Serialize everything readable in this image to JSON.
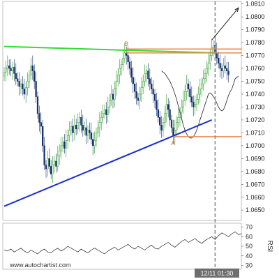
{
  "chart_data": [
    {
      "type": "candlestick",
      "name": "price",
      "source_text": "www.autochartist.com",
      "current_time_label": "12/11 01:30",
      "ylim": [
        1.0642,
        1.0812
      ],
      "y_ticks": [
        "1.0810",
        "1.0800",
        "1.0790",
        "1.0780",
        "1.0770",
        "1.0760",
        "1.0750",
        "1.0740",
        "1.0730",
        "1.0720",
        "1.0710",
        "1.0700",
        "1.0690",
        "1.0680",
        "1.0670",
        "1.0660",
        "1.0650"
      ],
      "point_labels": [
        {
          "label": "B",
          "index": 73,
          "price": 1.0773
        },
        {
          "label": "A",
          "index": 101,
          "price": 1.0707
        }
      ],
      "overlays": {
        "resistance_line": {
          "color": "#33dd33",
          "from": {
            "index": 0,
            "price": 1.0777
          },
          "to": {
            "index": 126,
            "price": 1.0772
          }
        },
        "support_line": {
          "color": "#1a2fd6",
          "from": {
            "index": 0,
            "price": 1.0653
          },
          "to": {
            "index": 124,
            "price": 1.072
          }
        },
        "orange_levels": [
          {
            "price": 1.0775,
            "from_index": 73,
            "to_index": 142
          },
          {
            "price": 1.0772,
            "from_index": 73,
            "to_index": 142
          },
          {
            "price": 1.0707,
            "from_index": 101,
            "to_index": 142
          }
        ],
        "forecast_arrow": {
          "from": {
            "index": 124,
            "price": 1.0782
          },
          "to": {
            "index": 140,
            "price": 1.0807
          }
        },
        "current_time_index": 126
      },
      "ohlc_close": [
        1.0757,
        1.076,
        1.0762,
        1.076,
        1.0758,
        1.0761,
        1.0756,
        1.0752,
        1.075,
        1.0746,
        1.0748,
        1.0744,
        1.074,
        1.0745,
        1.075,
        1.0755,
        1.0762,
        1.0758,
        1.075,
        1.0738,
        1.0725,
        1.0718,
        1.0715,
        1.07,
        1.0685,
        1.0682,
        1.069,
        1.0684,
        1.0678,
        1.0685,
        1.0688,
        1.0684,
        1.0692,
        1.0696,
        1.07,
        1.0703,
        1.0698,
        1.0704,
        1.0708,
        1.0712,
        1.0715,
        1.071,
        1.0716,
        1.0713,
        1.0718,
        1.0722,
        1.0716,
        1.0712,
        1.0714,
        1.0708,
        1.0712,
        1.071,
        1.0705,
        1.07,
        1.0704,
        1.071,
        1.0714,
        1.0718,
        1.0722,
        1.0725,
        1.0728,
        1.0724,
        1.073,
        1.0735,
        1.074,
        1.0736,
        1.0744,
        1.075,
        1.0755,
        1.076,
        1.0763,
        1.0768,
        1.0772,
        1.077,
        1.0765,
        1.076,
        1.0753,
        1.0748,
        1.0742,
        1.0737,
        1.0735,
        1.074,
        1.0745,
        1.075,
        1.0756,
        1.0758,
        1.0752,
        1.0748,
        1.0744,
        1.074,
        1.0735,
        1.0728,
        1.0722,
        1.0716,
        1.0712,
        1.0718,
        1.0725,
        1.0732,
        1.0728,
        1.072,
        1.0714,
        1.0708,
        1.0712,
        1.0718,
        1.0722,
        1.0726,
        1.073,
        1.0735,
        1.0742,
        1.0748,
        1.0744,
        1.0738,
        1.0734,
        1.073,
        1.0732,
        1.0736,
        1.074,
        1.0744,
        1.0748,
        1.0752,
        1.0756,
        1.076,
        1.0764,
        1.077,
        1.0776,
        1.0778,
        1.0772,
        1.0768,
        1.0764,
        1.076,
        1.0758,
        1.0762,
        1.076,
        1.0758,
        1.0755
      ],
      "moving_average": [
        1.0758,
        1.0757,
        1.0756,
        1.0754,
        1.0752,
        1.075,
        1.0747,
        1.0744,
        1.074,
        1.0736,
        1.0731,
        1.0726,
        1.0721,
        1.0716,
        1.0712,
        1.0709,
        1.0707,
        1.0706,
        1.0706,
        1.0707,
        1.0709,
        1.0712,
        1.0716,
        1.072,
        1.0724,
        1.0728,
        1.0732,
        1.0736,
        1.074,
        1.0741,
        1.074,
        1.0738,
        1.0736,
        1.0733,
        1.073,
        1.0728,
        1.0727,
        1.0728,
        1.0731,
        1.0735,
        1.0739,
        1.0742,
        1.0744,
        1.0748,
        1.0752,
        1.0753,
        1.0754
      ],
      "moving_average_start_index": 94,
      "moving_average_step": 1
    },
    {
      "type": "line",
      "name": "RSI",
      "ylabel": "RSI",
      "ylim": [
        26,
        74
      ],
      "y_ticks": [
        "70",
        "60",
        "50",
        "40",
        "30"
      ],
      "values": [
        46,
        45,
        47,
        44,
        46,
        48,
        45,
        43,
        46,
        44,
        42,
        45,
        47,
        44,
        43,
        46,
        48,
        45,
        47,
        50,
        48,
        46,
        44,
        47,
        45,
        43,
        46,
        48,
        46,
        44,
        42,
        45,
        47,
        49,
        46,
        48,
        50,
        52,
        49,
        47,
        50,
        48,
        46,
        49,
        51,
        48,
        47,
        50,
        52,
        54,
        51,
        49,
        52,
        55,
        57,
        54,
        56,
        58,
        55,
        53,
        56,
        58,
        60,
        57,
        61,
        64,
        62,
        60,
        63,
        65,
        62,
        63
      ],
      "scale_start_index": 0,
      "scale_step": 2
    }
  ]
}
